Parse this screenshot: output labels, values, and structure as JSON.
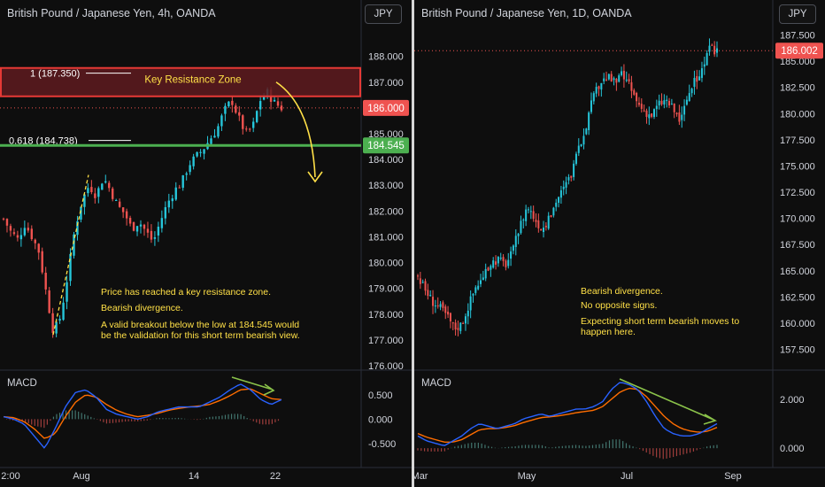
{
  "left": {
    "title": "British Pound / Japanese Yen, 4h, OANDA",
    "currency_button": "JPY",
    "price_ticks": [
      "188.000",
      "187.000",
      "186.000",
      "185.000",
      "184.000",
      "183.000",
      "182.000",
      "181.000",
      "180.000",
      "179.000",
      "178.000",
      "177.000",
      "176.000"
    ],
    "last_price_tag": "186.000",
    "support_price_tag": "184.545",
    "fib_1_label": "1 (187.350)",
    "fib_0618_label": "0.618 (184.738)",
    "zone_label": "Key Resistance Zone",
    "notes": [
      "Price has reached a key resistance zone.",
      "Bearish divergence.",
      "A valid breakout below the low at 184.545 would",
      "be the validation for this short term bearish view."
    ],
    "macd_label": "MACD",
    "macd_ticks": [
      "0.500",
      "0.000",
      "-0.500"
    ],
    "time_ticks": [
      "2:00",
      "Aug",
      "14",
      "22"
    ]
  },
  "right": {
    "title": "British Pound / Japanese Yen, 1D, OANDA",
    "currency_button": "JPY",
    "price_ticks": [
      "187.500",
      "185.000",
      "182.500",
      "180.000",
      "177.500",
      "175.000",
      "172.500",
      "170.000",
      "167.500",
      "165.000",
      "162.500",
      "160.000",
      "157.500"
    ],
    "last_price_tag": "186.002",
    "notes": [
      "Bearish divergence.",
      "No opposite signs.",
      "Expecting short term bearish moves to",
      "happen here."
    ],
    "macd_label": "MACD",
    "macd_ticks": [
      "2.000",
      "0.000"
    ],
    "time_ticks": [
      "Mar",
      "May",
      "Jul",
      "Sep"
    ]
  },
  "colors": {
    "up": "#26c6da",
    "down": "#ef5350",
    "support": "#4caf50",
    "resistance_fill": "#5e1a1f",
    "resistance_border": "#e53935",
    "annotation": "#ffe047",
    "macd_line": "#2962ff",
    "signal_line": "#ff6d00",
    "divergence_arrow": "#8bc34a"
  },
  "chart_data": [
    {
      "type": "candlestick",
      "title": "British Pound / Japanese Yen, 4h, OANDA",
      "ylim": [
        176,
        188.4
      ],
      "close_path": [
        181.7,
        181.2,
        180.9,
        181.5,
        181.0,
        180.4,
        178.8,
        177.3,
        177.9,
        179.5,
        181.3,
        182.4,
        183.0,
        182.6,
        183.3,
        182.8,
        182.2,
        181.9,
        181.3,
        181.6,
        181.2,
        180.8,
        181.6,
        182.3,
        182.8,
        183.1,
        183.8,
        184.1,
        184.4,
        184.8,
        185.2,
        185.9,
        186.3,
        185.6,
        185.0,
        185.3,
        186.3,
        186.6,
        186.2,
        186.0
      ],
      "levels": {
        "fib_1": 187.35,
        "fib_0618": 184.738,
        "support": 184.545,
        "resistance_zone": [
          186.45,
          187.55
        ]
      },
      "macd_ylim": [
        -0.7,
        0.75
      ],
      "macd_path": [
        0.05,
        0.0,
        -0.1,
        -0.35,
        -0.6,
        -0.2,
        0.25,
        0.55,
        0.6,
        0.45,
        0.2,
        0.1,
        0.05,
        0.0,
        0.05,
        0.15,
        0.2,
        0.25,
        0.25,
        0.25,
        0.35,
        0.45,
        0.6,
        0.72,
        0.6,
        0.4,
        0.3,
        0.4
      ],
      "signal_path": [
        0.05,
        0.03,
        -0.05,
        -0.2,
        -0.4,
        -0.3,
        0.05,
        0.35,
        0.5,
        0.45,
        0.3,
        0.18,
        0.1,
        0.05,
        0.08,
        0.12,
        0.18,
        0.22,
        0.25,
        0.27,
        0.3,
        0.38,
        0.48,
        0.6,
        0.62,
        0.52,
        0.42,
        0.4
      ]
    },
    {
      "type": "candlestick",
      "title": "British Pound / Japanese Yen, 1D, OANDA",
      "ylim": [
        156.2,
        188.3
      ],
      "close_path": [
        164.5,
        163.2,
        162.1,
        161.5,
        160.7,
        159.5,
        159.9,
        161.8,
        163.6,
        164.3,
        165.8,
        166.1,
        165.6,
        166.8,
        169.3,
        171.2,
        170.0,
        169.0,
        169.9,
        171.8,
        172.8,
        174.2,
        176.4,
        178.8,
        181.4,
        183.0,
        183.5,
        182.9,
        183.7,
        182.6,
        181.1,
        180.3,
        179.8,
        180.9,
        181.3,
        180.4,
        179.2,
        181.7,
        183.1,
        184.3,
        186.1,
        186.0
      ],
      "macd_ylim": [
        -0.5,
        2.9
      ],
      "macd_path": [
        0.5,
        0.3,
        0.2,
        0.1,
        0.3,
        0.5,
        0.8,
        1.0,
        0.9,
        0.8,
        0.9,
        1.0,
        1.2,
        1.3,
        1.4,
        1.3,
        1.4,
        1.5,
        1.6,
        1.6,
        1.7,
        1.9,
        2.4,
        2.7,
        2.6,
        2.4,
        1.9,
        1.3,
        0.8,
        0.6,
        0.5,
        0.5,
        0.6,
        0.8,
        1.0
      ],
      "signal_path": [
        0.6,
        0.45,
        0.35,
        0.25,
        0.25,
        0.35,
        0.55,
        0.75,
        0.8,
        0.8,
        0.85,
        0.92,
        1.05,
        1.15,
        1.25,
        1.28,
        1.32,
        1.38,
        1.45,
        1.5,
        1.55,
        1.7,
        2.0,
        2.3,
        2.45,
        2.4,
        2.1,
        1.7,
        1.3,
        1.0,
        0.8,
        0.7,
        0.65,
        0.7,
        0.85
      ]
    }
  ]
}
